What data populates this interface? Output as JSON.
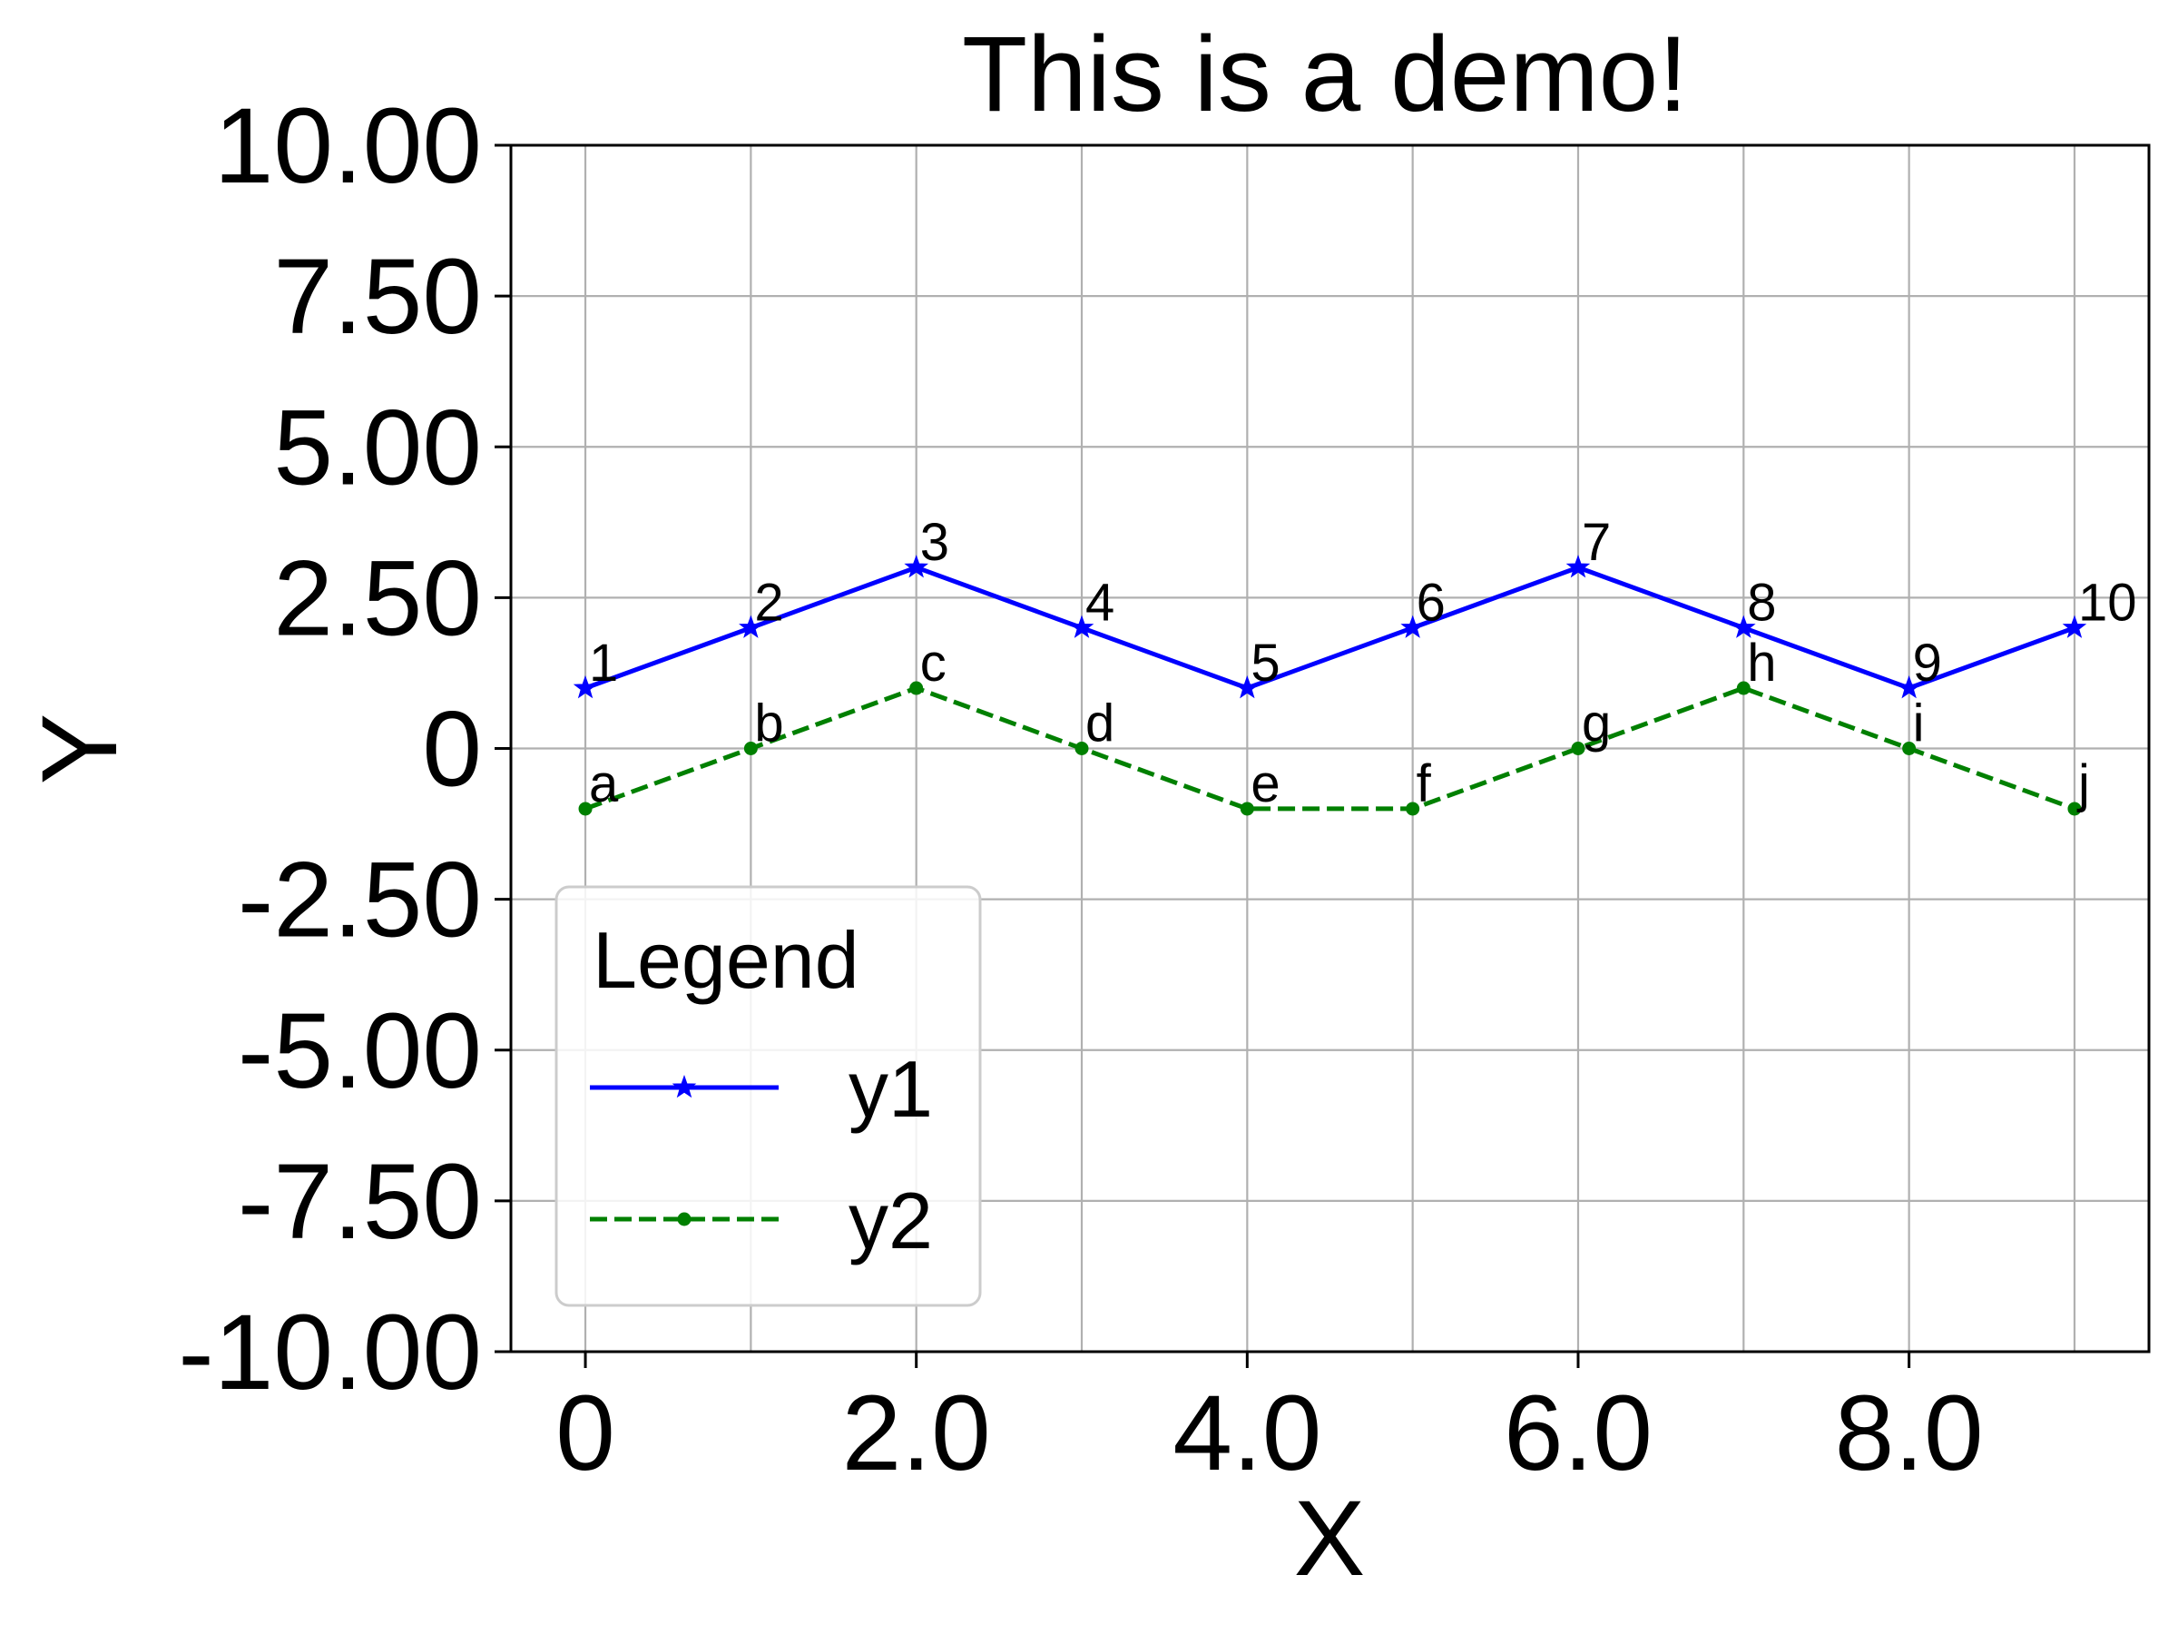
{
  "chart_data": {
    "type": "line",
    "title": "This is a demo!",
    "xlabel": "X",
    "ylabel": "Y",
    "xlim": [
      -0.45,
      9.45
    ],
    "ylim": [
      -10,
      10
    ],
    "x_ticks": [
      0,
      2,
      4,
      6,
      8
    ],
    "x_tick_labels": [
      "0",
      "2.0",
      "4.0",
      "6.0",
      "8.0"
    ],
    "y_ticks": [
      -10,
      -7.5,
      -5,
      -2.5,
      0,
      2.5,
      5,
      7.5,
      10
    ],
    "y_tick_labels": [
      "-10.00",
      "-7.50",
      "-5.00",
      "-2.50",
      "0",
      "2.50",
      "5.00",
      "7.50",
      "10.00"
    ],
    "x_grid": [
      0,
      1,
      2,
      3,
      4,
      5,
      6,
      7,
      8,
      9
    ],
    "grid": true,
    "legend": {
      "title": "Legend",
      "location": "lower-left"
    },
    "x": [
      0,
      1,
      2,
      3,
      4,
      5,
      6,
      7,
      8,
      9
    ],
    "series": [
      {
        "name": "y1",
        "values": [
          1,
          2,
          3,
          2,
          1,
          2,
          3,
          2,
          1,
          2
        ],
        "point_labels": [
          "1",
          "2",
          "3",
          "4",
          "5",
          "6",
          "7",
          "8",
          "9",
          "10"
        ],
        "color": "#0000ff",
        "line_style": "solid",
        "marker": "star"
      },
      {
        "name": "y2",
        "values": [
          -1,
          0,
          1,
          0,
          -1,
          -1,
          0,
          1,
          0,
          -1
        ],
        "point_labels": [
          "a",
          "b",
          "c",
          "d",
          "e",
          "f",
          "g",
          "h",
          "i",
          "j"
        ],
        "color": "#008000",
        "line_style": "dashed",
        "marker": "dot"
      }
    ]
  }
}
